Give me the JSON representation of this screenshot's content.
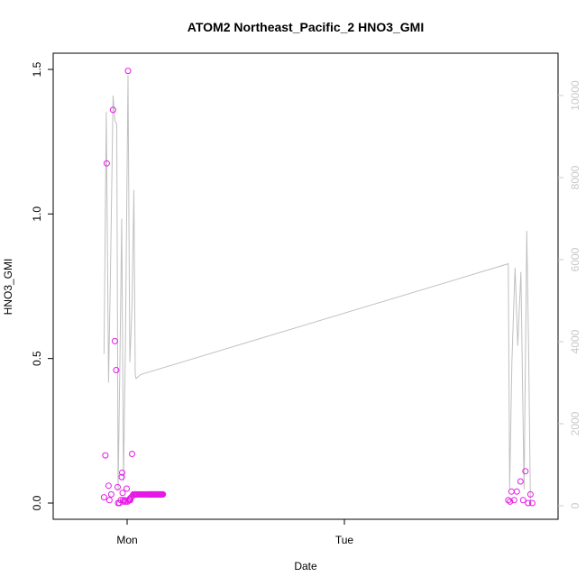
{
  "chart_data": {
    "type": "scatter",
    "title": "ATOM2 Northeast_Pacific_2 HNO3_GMI",
    "xlabel": "Date",
    "ylabel": "HNO3_GMI",
    "x_ticks": [
      "Mon",
      "Tue"
    ],
    "y_ticks": [
      "0.0",
      "0.5",
      "1.0",
      "1.5"
    ],
    "y2_ticks": [
      "0",
      "2000",
      "4000",
      "6000",
      "8000",
      "10000"
    ],
    "xlim_hours": [
      -3,
      48
    ],
    "ylim": [
      0,
      1.5
    ],
    "y2lim": [
      0,
      10500
    ],
    "colors": {
      "points": "#e619e6",
      "altitude_line": "#c0c0c0",
      "axes": "#000000",
      "right_axis": "#c8c8c8"
    },
    "series": [
      {
        "kind": "points",
        "x_hours": [
          -2.55,
          -2.4,
          -2.25,
          -2.05,
          -1.95,
          -1.75,
          -1.55,
          -1.35,
          -1.2,
          -1.05,
          -1.0,
          -0.85,
          -0.7,
          -0.6,
          -0.55,
          -0.5,
          -0.45,
          -0.35,
          -0.25,
          -0.15,
          -0.05,
          0.05,
          0.1,
          0.2,
          0.25,
          0.3,
          0.35,
          0.45,
          0.55,
          0.6,
          0.7,
          0.8,
          0.9,
          0.95,
          1.0,
          1.05,
          1.15,
          1.25,
          1.35,
          1.45,
          1.55,
          1.65,
          1.75,
          1.85,
          1.95,
          2.05,
          2.15,
          2.25,
          2.3,
          2.35,
          2.4,
          2.45,
          2.5,
          2.55,
          2.6,
          2.65,
          2.7,
          2.75,
          2.8,
          2.85,
          2.9,
          2.95,
          3.0,
          3.05,
          3.1,
          3.15,
          3.2,
          3.25,
          3.3,
          3.35,
          3.4,
          3.45,
          3.5,
          3.55,
          3.6,
          3.65,
          3.7,
          3.75,
          3.8,
          3.85,
          3.9,
          3.95
        ],
        "y": [
          0.02,
          0.165,
          1.175,
          0.06,
          0.01,
          0.03,
          1.36,
          0.56,
          0.46,
          0.055,
          0.0,
          0.0,
          0.01,
          0.09,
          0.105,
          0.035,
          0.01,
          0.005,
          0.01,
          0.005,
          0.05,
          0.005,
          1.495,
          0.01,
          0.01,
          0.015,
          0.01,
          0.02,
          0.17,
          0.025,
          0.03,
          0.03,
          0.03,
          0.03,
          0.03,
          0.03,
          0.03,
          0.03,
          0.03,
          0.03,
          0.03,
          0.03,
          0.03,
          0.03,
          0.03,
          0.03,
          0.03,
          0.03,
          0.03,
          0.03,
          0.03,
          0.03,
          0.03,
          0.03,
          0.03,
          0.03,
          0.03,
          0.03,
          0.03,
          0.03,
          0.03,
          0.03,
          0.03,
          0.03,
          0.03,
          0.03,
          0.03,
          0.03,
          0.03,
          0.03,
          0.03,
          0.03,
          0.03,
          0.03,
          0.03,
          0.03,
          0.03,
          0.03,
          0.03,
          0.03,
          0.03,
          0.03
        ]
      },
      {
        "kind": "points",
        "x_hours": [
          42.1,
          42.3,
          42.45,
          42.75,
          43.05,
          43.45,
          43.75,
          44.0,
          44.3,
          44.55,
          44.75
        ],
        "y": [
          0.01,
          0.005,
          0.04,
          0.01,
          0.04,
          0.075,
          0.01,
          0.11,
          0.0,
          0.03,
          0.0
        ]
      },
      {
        "kind": "line",
        "axis": "right",
        "x_hours": [
          -2.55,
          -2.3,
          -2.05,
          -1.85,
          -1.55,
          -1.35,
          -1.15,
          -1.0,
          -0.8,
          -0.6,
          -0.4,
          -0.2,
          0.1,
          0.3,
          0.55,
          0.75,
          0.9,
          1.0,
          1.5,
          42.1,
          42.25,
          42.5,
          42.85,
          43.15,
          43.5,
          43.85,
          44.15,
          44.35,
          44.55
        ],
        "y2": [
          3700,
          9600,
          3000,
          5500,
          10000,
          9400,
          9300,
          400,
          3500,
          7000,
          600,
          3700,
          10500,
          3500,
          4900,
          7700,
          3200,
          3100,
          3200,
          5900,
          400,
          3500,
          5800,
          3900,
          5700,
          400,
          6700,
          3900,
          0
        ]
      }
    ]
  }
}
